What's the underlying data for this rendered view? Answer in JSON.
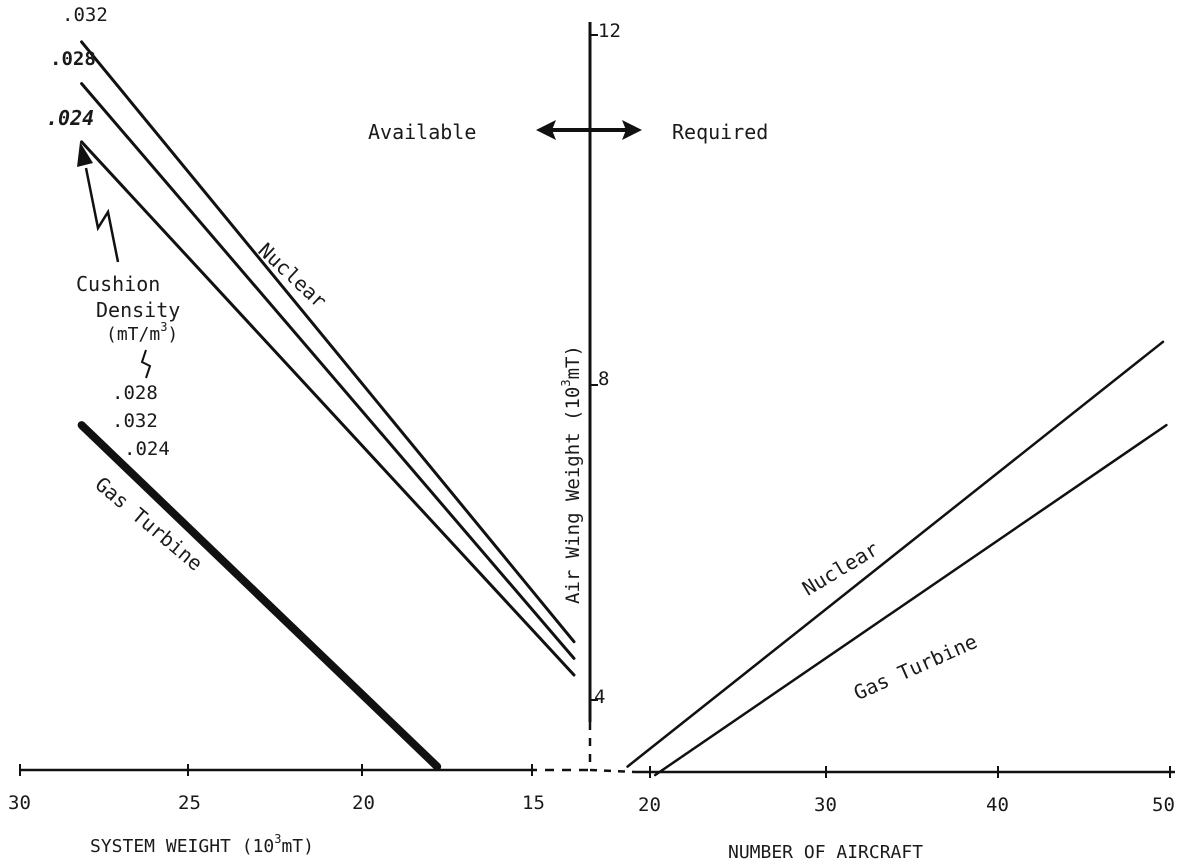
{
  "chart_data": {
    "type": "line",
    "y_axis": {
      "label_prefix": "Air Wing Weight (10",
      "label_exp": "3",
      "label_suffix": "mT)",
      "ticks": [
        "4",
        "8",
        "12"
      ]
    },
    "annotation": {
      "available": "Available",
      "required": "Required"
    },
    "left_panel": {
      "xlabel_prefix": "SYSTEM WEIGHT (10",
      "xlabel_exp": "3",
      "xlabel_suffix": "mT)",
      "xticks": [
        "30",
        "25",
        "20",
        "15"
      ],
      "cushion_density": {
        "title_line1": "Cushion",
        "title_line2": "Density",
        "unit_prefix": "(mT/m",
        "unit_exp": "3",
        "unit_suffix": ")"
      },
      "nuclear_label": "Nuclear",
      "gas_turbine_label": "Gas Turbine",
      "nuclear_series": [
        {
          "name": ".032",
          "points": [
            [
              28.2,
              11.9
            ],
            [
              13.8,
              4.7
            ]
          ]
        },
        {
          "name": ".028",
          "points": [
            [
              28.2,
              11.4
            ],
            [
              13.8,
              4.5
            ]
          ]
        },
        {
          "name": ".024",
          "points": [
            [
              28.2,
              10.7
            ],
            [
              13.8,
              4.3
            ]
          ]
        }
      ],
      "gas_turbine_series": {
        "names": [
          ".028",
          ".032",
          ".024"
        ],
        "points": [
          [
            28.2,
            7.3
          ],
          [
            17.8,
            3.2
          ]
        ]
      }
    },
    "right_panel": {
      "xlabel": "NUMBER OF AIRCRAFT",
      "xticks": [
        "20",
        "30",
        "40",
        "50"
      ],
      "series": [
        {
          "name": "Nuclear",
          "points": [
            [
              18.7,
              3.2
            ],
            [
              49.6,
              8.3
            ]
          ]
        },
        {
          "name": "Gas Turbine",
          "points": [
            [
              20.3,
              3.1
            ],
            [
              49.8,
              7.3
            ]
          ]
        }
      ]
    }
  }
}
